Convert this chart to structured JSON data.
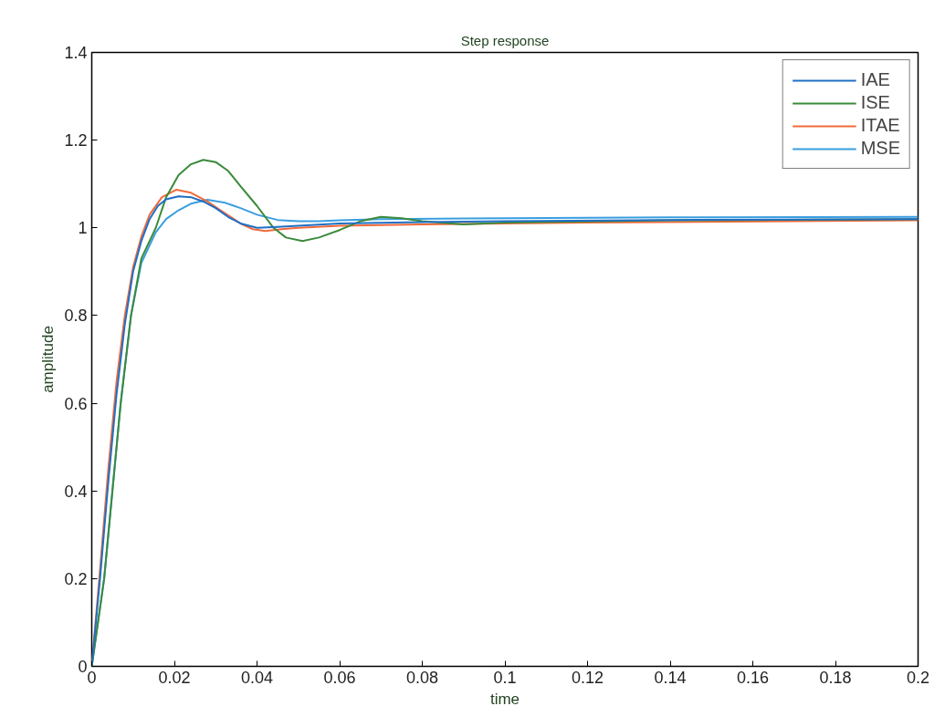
{
  "chart_data": {
    "type": "line",
    "title": "Step response",
    "xlabel": "time",
    "ylabel": "amplitude",
    "xlim": [
      0,
      0.2
    ],
    "xticks": [
      0,
      0.02,
      0.04,
      0.06,
      0.08,
      0.1,
      0.12,
      0.14,
      0.16,
      0.18,
      0.2
    ],
    "ylim": [
      0,
      1.4
    ],
    "yticks": [
      0,
      0.2,
      0.4,
      0.6,
      0.8,
      1,
      1.2,
      1.4
    ],
    "grid": false,
    "legend": "top right",
    "marker": "none",
    "line_style": "solid",
    "series": [
      {
        "name": "IAE",
        "color": "#1f6fc4",
        "x": [
          0,
          0.002,
          0.004,
          0.006,
          0.008,
          0.01,
          0.012,
          0.014,
          0.016,
          0.018,
          0.021,
          0.024,
          0.027,
          0.03,
          0.033,
          0.036,
          0.04,
          0.045,
          0.05,
          0.06,
          0.08,
          0.1,
          0.14,
          0.2
        ],
        "values": [
          0,
          0.2,
          0.42,
          0.62,
          0.78,
          0.9,
          0.97,
          1.02,
          1.05,
          1.065,
          1.072,
          1.07,
          1.06,
          1.045,
          1.025,
          1.01,
          1.0,
          1.002,
          1.005,
          1.01,
          1.013,
          1.015,
          1.018,
          1.02
        ]
      },
      {
        "name": "ISE",
        "color": "#3a8a3a",
        "x": [
          0,
          0.003,
          0.005,
          0.007,
          0.0095,
          0.012,
          0.0155,
          0.018,
          0.021,
          0.024,
          0.027,
          0.03,
          0.033,
          0.036,
          0.04,
          0.044,
          0.047,
          0.051,
          0.055,
          0.06,
          0.065,
          0.07,
          0.075,
          0.08,
          0.09,
          0.1,
          0.14,
          0.2
        ],
        "values": [
          0,
          0.2,
          0.4,
          0.6,
          0.8,
          0.93,
          1.0,
          1.07,
          1.12,
          1.145,
          1.155,
          1.15,
          1.13,
          1.095,
          1.05,
          1.0,
          0.978,
          0.97,
          0.978,
          0.995,
          1.015,
          1.025,
          1.022,
          1.015,
          1.008,
          1.012,
          1.017,
          1.02
        ]
      },
      {
        "name": "ITAE",
        "color": "#f06a3c",
        "x": [
          0,
          0.002,
          0.004,
          0.006,
          0.008,
          0.01,
          0.012,
          0.014,
          0.017,
          0.0205,
          0.024,
          0.028,
          0.032,
          0.036,
          0.039,
          0.042,
          0.046,
          0.05,
          0.06,
          0.08,
          0.12,
          0.2
        ],
        "values": [
          0,
          0.22,
          0.45,
          0.65,
          0.8,
          0.91,
          0.98,
          1.03,
          1.07,
          1.087,
          1.08,
          1.06,
          1.035,
          1.01,
          0.997,
          0.993,
          0.997,
          1.0,
          1.005,
          1.008,
          1.012,
          1.017
        ]
      },
      {
        "name": "MSE",
        "color": "#3a9ee0",
        "x": [
          0,
          0.003,
          0.005,
          0.007,
          0.0095,
          0.012,
          0.0155,
          0.018,
          0.021,
          0.024,
          0.028,
          0.032,
          0.036,
          0.04,
          0.045,
          0.05,
          0.055,
          0.06,
          0.07,
          0.1,
          0.14,
          0.2
        ],
        "values": [
          0,
          0.2,
          0.4,
          0.6,
          0.8,
          0.92,
          0.99,
          1.02,
          1.04,
          1.055,
          1.064,
          1.058,
          1.045,
          1.03,
          1.018,
          1.015,
          1.015,
          1.017,
          1.02,
          1.022,
          1.024,
          1.025
        ]
      }
    ]
  }
}
